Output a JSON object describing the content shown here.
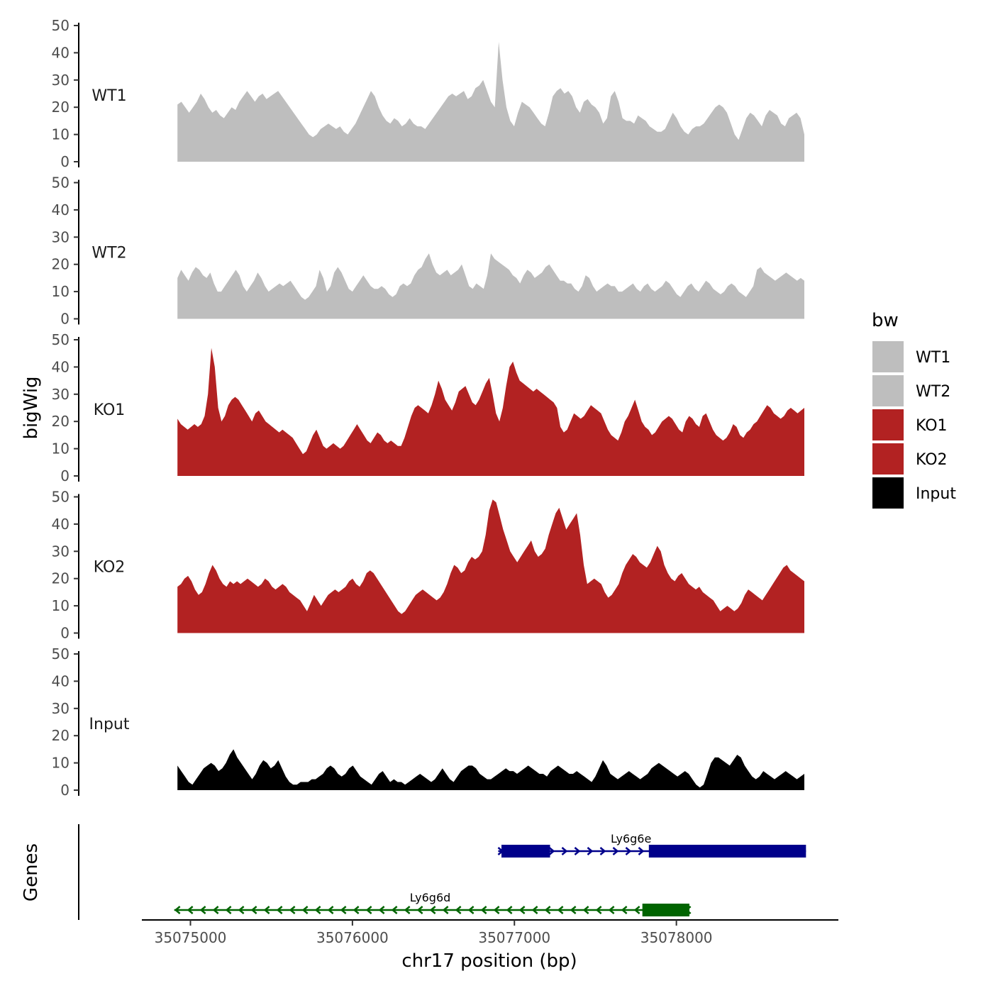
{
  "chart_data": {
    "type": "area",
    "title": "",
    "ylabel": "bigWig",
    "xlabel": "chr17 position (bp)",
    "ylim": [
      0,
      50
    ],
    "y_ticks": [
      0,
      10,
      20,
      30,
      40,
      50
    ],
    "xlim": [
      35074700,
      35079000
    ],
    "x_ticks": [
      35075000,
      35076000,
      35077000,
      35078000
    ],
    "x_tick_labels": [
      "35075000",
      "35076000",
      "35077000",
      "35078000"
    ],
    "series_start": 35074920,
    "series_end": 35078790,
    "legend": {
      "title": "bw",
      "position": "right"
    },
    "series": [
      {
        "name": "WT1",
        "color": "#bebebe",
        "values": [
          21,
          22,
          20,
          18,
          20,
          22,
          25,
          23,
          20,
          18,
          19,
          17,
          16,
          18,
          20,
          19,
          22,
          24,
          26,
          24,
          22,
          24,
          25,
          23,
          24,
          25,
          26,
          24,
          22,
          20,
          18,
          16,
          14,
          12,
          10,
          9,
          10,
          12,
          13,
          14,
          13,
          12,
          13,
          11,
          10,
          12,
          14,
          17,
          20,
          23,
          26,
          24,
          20,
          17,
          15,
          14,
          16,
          15,
          13,
          14,
          16,
          14,
          13,
          13,
          12,
          14,
          16,
          18,
          20,
          22,
          24,
          25,
          24,
          25,
          26,
          23,
          24,
          27,
          28,
          30,
          26,
          22,
          20,
          44,
          30,
          20,
          15,
          13,
          18,
          22,
          21,
          20,
          18,
          16,
          14,
          13,
          18,
          24,
          26,
          27,
          25,
          26,
          24,
          20,
          18,
          22,
          23,
          21,
          20,
          18,
          14,
          16,
          24,
          26,
          22,
          16,
          15,
          15,
          14,
          17,
          16,
          15,
          13,
          12,
          11,
          11,
          12,
          15,
          18,
          16,
          13,
          11,
          10,
          12,
          13,
          13,
          14,
          16,
          18,
          20,
          21,
          20,
          18,
          14,
          10,
          8,
          12,
          16,
          18,
          17,
          15,
          13,
          17,
          19,
          18,
          17,
          14,
          13,
          16,
          17,
          18,
          16,
          10
        ]
      },
      {
        "name": "WT2",
        "color": "#bebebe",
        "values": [
          15,
          18,
          16,
          14,
          17,
          19,
          18,
          16,
          15,
          17,
          13,
          10,
          10,
          12,
          14,
          16,
          18,
          16,
          12,
          10,
          12,
          14,
          17,
          15,
          12,
          10,
          11,
          12,
          13,
          12,
          13,
          14,
          12,
          10,
          8,
          7,
          8,
          10,
          12,
          18,
          15,
          10,
          12,
          17,
          19,
          17,
          14,
          11,
          10,
          12,
          14,
          16,
          14,
          12,
          11,
          11,
          12,
          11,
          9,
          8,
          9,
          12,
          13,
          12,
          13,
          16,
          18,
          19,
          22,
          24,
          20,
          17,
          16,
          17,
          18,
          16,
          17,
          18,
          20,
          16,
          12,
          11,
          13,
          12,
          11,
          16,
          24,
          22,
          21,
          20,
          19,
          18,
          16,
          15,
          13,
          16,
          18,
          17,
          15,
          16,
          17,
          19,
          20,
          18,
          16,
          14,
          14,
          13,
          13,
          11,
          10,
          12,
          16,
          15,
          12,
          10,
          11,
          12,
          13,
          12,
          12,
          10,
          10,
          11,
          12,
          13,
          11,
          10,
          12,
          13,
          11,
          10,
          11,
          12,
          14,
          13,
          11,
          9,
          8,
          10,
          12,
          13,
          11,
          10,
          12,
          14,
          13,
          11,
          10,
          9,
          10,
          12,
          13,
          12,
          10,
          9,
          8,
          10,
          12,
          18,
          19,
          17,
          16,
          15,
          14,
          15,
          16,
          17,
          16,
          15,
          14,
          15,
          14
        ]
      },
      {
        "name": "KO1",
        "color": "#b22222",
        "values": [
          21,
          19,
          18,
          17,
          18,
          19,
          18,
          19,
          22,
          30,
          47,
          40,
          25,
          20,
          22,
          26,
          28,
          29,
          28,
          26,
          24,
          22,
          20,
          23,
          24,
          22,
          20,
          19,
          18,
          17,
          16,
          17,
          16,
          15,
          14,
          12,
          10,
          8,
          9,
          12,
          15,
          17,
          14,
          11,
          10,
          11,
          12,
          11,
          10,
          11,
          13,
          15,
          17,
          19,
          17,
          15,
          13,
          12,
          14,
          16,
          15,
          13,
          12,
          13,
          12,
          11,
          11,
          14,
          18,
          22,
          25,
          26,
          25,
          24,
          23,
          26,
          30,
          35,
          32,
          28,
          26,
          24,
          27,
          31,
          32,
          33,
          30,
          27,
          26,
          28,
          31,
          34,
          36,
          30,
          23,
          20,
          25,
          33,
          40,
          42,
          38,
          35,
          34,
          33,
          32,
          31,
          32,
          31,
          30,
          29,
          28,
          27,
          25,
          18,
          16,
          17,
          20,
          23,
          22,
          21,
          22,
          24,
          26,
          25,
          24,
          23,
          20,
          17,
          15,
          14,
          13,
          16,
          20,
          22,
          25,
          28,
          24,
          20,
          18,
          17,
          15,
          16,
          18,
          20,
          21,
          22,
          21,
          19,
          17,
          16,
          20,
          22,
          21,
          19,
          18,
          22,
          23,
          20,
          17,
          15,
          14,
          13,
          14,
          16,
          19,
          18,
          15,
          14,
          16,
          17,
          19,
          20,
          22,
          24,
          26,
          25,
          23,
          22,
          21,
          22,
          24,
          25,
          24,
          23,
          24,
          25
        ]
      },
      {
        "name": "KO2",
        "color": "#b22222",
        "values": [
          17,
          18,
          20,
          21,
          19,
          16,
          14,
          15,
          18,
          22,
          25,
          23,
          20,
          18,
          17,
          19,
          18,
          19,
          18,
          19,
          20,
          19,
          18,
          17,
          18,
          20,
          19,
          17,
          16,
          17,
          18,
          17,
          15,
          14,
          13,
          12,
          10,
          8,
          11,
          14,
          12,
          10,
          12,
          14,
          15,
          16,
          15,
          16,
          17,
          19,
          20,
          18,
          17,
          19,
          22,
          23,
          22,
          20,
          18,
          16,
          14,
          12,
          10,
          8,
          7,
          8,
          10,
          12,
          14,
          15,
          16,
          15,
          14,
          13,
          12,
          13,
          15,
          18,
          22,
          25,
          24,
          22,
          23,
          26,
          28,
          27,
          28,
          30,
          36,
          45,
          49,
          48,
          43,
          38,
          34,
          30,
          28,
          26,
          28,
          30,
          32,
          34,
          30,
          28,
          29,
          31,
          36,
          40,
          44,
          46,
          42,
          38,
          40,
          42,
          44,
          36,
          25,
          18,
          19,
          20,
          19,
          18,
          15,
          13,
          14,
          16,
          18,
          22,
          25,
          27,
          29,
          28,
          26,
          25,
          24,
          26,
          29,
          32,
          30,
          25,
          22,
          20,
          19,
          21,
          22,
          20,
          18,
          17,
          16,
          17,
          15,
          14,
          13,
          12,
          10,
          8,
          9,
          10,
          9,
          8,
          9,
          11,
          14,
          16,
          15,
          14,
          13,
          12,
          14,
          16,
          18,
          20,
          22,
          24,
          25,
          23,
          22,
          21,
          20,
          19
        ]
      },
      {
        "name": "Input",
        "color": "#000000",
        "values": [
          9,
          7,
          5,
          3,
          2,
          4,
          6,
          8,
          9,
          10,
          9,
          7,
          8,
          10,
          13,
          15,
          12,
          10,
          8,
          6,
          4,
          6,
          9,
          11,
          10,
          8,
          9,
          11,
          8,
          5,
          3,
          2,
          2,
          3,
          3,
          3,
          4,
          4,
          5,
          6,
          8,
          9,
          8,
          6,
          5,
          6,
          8,
          9,
          7,
          5,
          4,
          3,
          2,
          4,
          6,
          7,
          5,
          3,
          4,
          3,
          3,
          2,
          3,
          4,
          5,
          6,
          5,
          4,
          3,
          4,
          6,
          8,
          6,
          4,
          3,
          5,
          7,
          8,
          9,
          9,
          8,
          6,
          5,
          4,
          4,
          5,
          6,
          7,
          8,
          7,
          7,
          6,
          7,
          8,
          9,
          8,
          7,
          6,
          6,
          5,
          7,
          8,
          9,
          8,
          7,
          6,
          6,
          7,
          6,
          5,
          4,
          3,
          5,
          8,
          11,
          9,
          6,
          5,
          4,
          5,
          6,
          7,
          6,
          5,
          4,
          5,
          6,
          8,
          9,
          10,
          9,
          8,
          7,
          6,
          5,
          6,
          7,
          6,
          4,
          2,
          1,
          2,
          6,
          10,
          12,
          12,
          11,
          10,
          9,
          11,
          13,
          12,
          9,
          7,
          5,
          4,
          5,
          7,
          6,
          5,
          4,
          5,
          6,
          7,
          6,
          5,
          4,
          5,
          6
        ]
      }
    ],
    "genes_track": {
      "label": "Genes",
      "genes": [
        {
          "name": "Ly6g6e",
          "strand": "+",
          "color": "#00008b",
          "start": 35076900,
          "end": 35078800,
          "exons": [
            [
              35076920,
              35077220
            ],
            [
              35077830,
              35078800
            ]
          ]
        },
        {
          "name": "Ly6g6d",
          "strand": "-",
          "color": "#006400",
          "start": 35074900,
          "end": 35078080,
          "exons": [
            [
              35077790,
              35078080
            ]
          ]
        }
      ]
    }
  }
}
